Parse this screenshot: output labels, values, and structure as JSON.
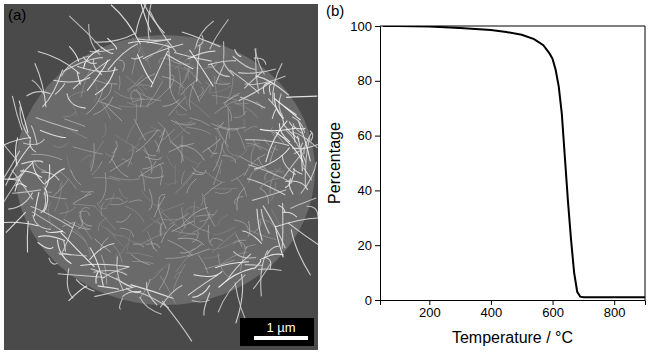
{
  "panel_a": {
    "panel_label": "(a)",
    "scale_bar": "1 µm"
  },
  "chart_data": {
    "type": "line",
    "panel_label": "(b)",
    "x_label": "Temperature / °C",
    "y_label": "Percentage",
    "x": [
      50,
      100,
      200,
      300,
      400,
      450,
      500,
      540,
      570,
      590,
      600,
      610,
      620,
      630,
      640,
      650,
      660,
      670,
      680,
      690,
      700,
      800,
      900
    ],
    "values": [
      100,
      100,
      99.8,
      99.3,
      98.5,
      97.8,
      96.8,
      95.2,
      93,
      90,
      88,
      84,
      78,
      68,
      52,
      36,
      22,
      10,
      3,
      1.2,
      1,
      1,
      1
    ],
    "color": "#000000",
    "xlim": [
      40,
      900
    ],
    "ylim": [
      0,
      100
    ],
    "xticks": [
      200,
      400,
      600,
      800
    ],
    "yticks": [
      0,
      20,
      40,
      60,
      80,
      100
    ]
  }
}
